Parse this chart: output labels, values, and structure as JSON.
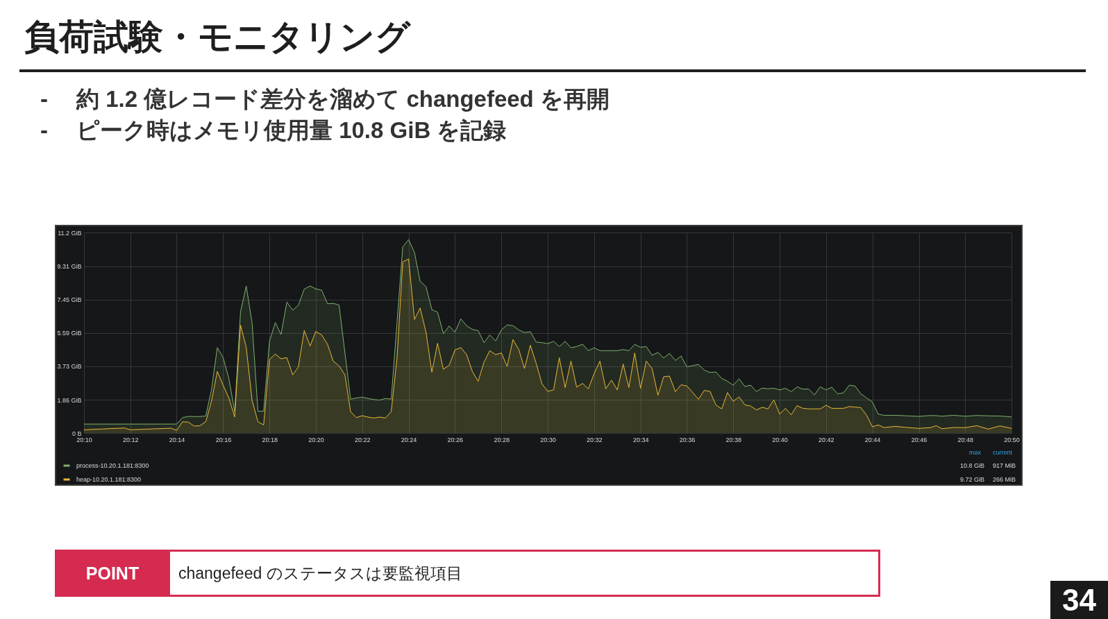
{
  "chart_data": {
    "type": "area",
    "title": "負荷試験・モニタリング",
    "subtitle": "-\t約 1.2 億レコード差分を溜めて changefeed を再開\n-\tピーク時はメモリ使用量 10.8 GiB を記録",
    "x": [
      20.1667,
      20.1958,
      20.2,
      20.2292,
      20.2333,
      20.2375,
      20.2417,
      20.2458,
      20.25,
      20.2542,
      20.2583,
      20.2625,
      20.2667,
      20.2708,
      20.275,
      20.2792,
      20.2833,
      20.2875,
      20.2917,
      20.2958,
      20.3,
      20.3042,
      20.3083,
      20.3125,
      20.3167,
      20.3208,
      20.325,
      20.3292,
      20.3333,
      20.3375,
      20.3417,
      20.3458,
      20.35,
      20.3542,
      20.3583,
      20.3625,
      20.3667,
      20.3708,
      20.375,
      20.3792,
      20.3833,
      20.3875,
      20.3917,
      20.3958,
      20.4,
      20.4042,
      20.4083,
      20.4125,
      20.4167,
      20.4208,
      20.425,
      20.4292,
      20.4333,
      20.4375,
      20.4417,
      20.4458,
      20.45,
      20.4542,
      20.4583,
      20.4625,
      20.4667,
      20.4708,
      20.475,
      20.4792,
      20.4833,
      20.4875,
      20.4917,
      20.4958,
      20.5,
      20.5042,
      20.5083,
      20.5125,
      20.5167,
      20.5208,
      20.525,
      20.5292,
      20.5333,
      20.5375,
      20.5417,
      20.5458,
      20.55,
      20.5542,
      20.5583,
      20.5625,
      20.5667,
      20.5708,
      20.575,
      20.5792,
      20.5833,
      20.5875,
      20.5917,
      20.5958,
      20.6,
      20.6042,
      20.6083,
      20.6125,
      20.6167,
      20.6208,
      20.625,
      20.6292,
      20.6333,
      20.6375,
      20.6417,
      20.6458,
      20.65,
      20.6542,
      20.6583,
      20.6625,
      20.6667,
      20.6708,
      20.675,
      20.6792,
      20.6833,
      20.6875,
      20.6917,
      20.6958,
      20.7,
      20.7042,
      20.7083,
      20.7125,
      20.7167,
      20.7208,
      20.725,
      20.7292,
      20.7333,
      20.7375,
      20.7417,
      20.75,
      20.7583,
      20.7667,
      20.775,
      20.7792,
      20.7833,
      20.7917,
      20.8,
      20.8083,
      20.8167,
      20.825,
      20.8333
    ],
    "series": [
      {
        "name": "process-10.20.1.181:8300",
        "color": "#7eb26d",
        "values": [
          0.5,
          0.5,
          0.5,
          0.5,
          0.5,
          0.86,
          0.93,
          0.92,
          0.92,
          0.95,
          2.41,
          4.77,
          4.21,
          3.05,
          1.19,
          6.77,
          8.21,
          6.15,
          1.22,
          1.22,
          5.12,
          6.17,
          5.5,
          7.31,
          6.86,
          7.14,
          8.04,
          8.21,
          8.05,
          7.98,
          7.22,
          7.24,
          7.15,
          4.5,
          1.89,
          1.96,
          2.0,
          1.93,
          1.87,
          1.84,
          1.93,
          1.89,
          6.2,
          10.4,
          10.8,
          10.08,
          8.47,
          8.18,
          6.89,
          6.75,
          5.55,
          5.98,
          5.63,
          6.38,
          5.99,
          5.79,
          5.72,
          5.04,
          5.48,
          5.14,
          5.76,
          6.04,
          5.99,
          5.76,
          5.61,
          5.66,
          5.08,
          5.05,
          4.99,
          5.12,
          4.83,
          5.12,
          4.76,
          4.83,
          4.96,
          4.6,
          4.76,
          4.6,
          4.6,
          4.6,
          4.6,
          4.66,
          4.6,
          4.95,
          4.79,
          4.83,
          4.34,
          4.5,
          4.19,
          4.45,
          4.05,
          4.3,
          3.7,
          3.76,
          3.83,
          3.51,
          3.38,
          3.41,
          3.05,
          2.89,
          2.67,
          3.03,
          2.6,
          2.67,
          2.32,
          2.51,
          2.47,
          2.5,
          2.41,
          2.5,
          2.31,
          2.58,
          2.45,
          2.46,
          2.13,
          2.58,
          2.41,
          2.56,
          2.19,
          2.24,
          2.67,
          2.63,
          2.19,
          1.96,
          1.73,
          1.06,
          0.99,
          0.99,
          0.96,
          0.93,
          0.98,
          0.97,
          0.94,
          0.99,
          0.94,
          0.98,
          0.96,
          0.95,
          0.9
        ]
      },
      {
        "name": "heap-10.20.1.181:8300",
        "color": "#eab839",
        "values": [
          0.18,
          0.28,
          0.18,
          0.27,
          0.15,
          0.63,
          0.61,
          0.39,
          0.41,
          0.63,
          1.77,
          3.44,
          2.67,
          1.96,
          0.9,
          6.02,
          4.79,
          1.83,
          0.63,
          0.45,
          4.11,
          4.41,
          4.15,
          4.21,
          3.25,
          3.7,
          5.73,
          4.86,
          5.67,
          5.48,
          4.96,
          4.02,
          3.75,
          3.25,
          1.19,
          0.86,
          0.97,
          0.89,
          0.84,
          0.89,
          0.84,
          1.19,
          4.21,
          9.56,
          9.72,
          6.34,
          6.98,
          5.63,
          3.4,
          5.01,
          3.56,
          3.79,
          4.64,
          4.77,
          4.38,
          3.44,
          2.89,
          3.96,
          4.6,
          4.38,
          4.47,
          3.72,
          5.22,
          4.66,
          3.6,
          4.9,
          3.89,
          2.75,
          2.33,
          2.41,
          4.21,
          2.54,
          4.02,
          2.56,
          2.77,
          2.47,
          3.31,
          4.02,
          2.47,
          2.95,
          2.41,
          3.85,
          2.54,
          4.47,
          2.5,
          4.02,
          3.6,
          2.11,
          3.14,
          3.18,
          2.31,
          2.69,
          2.63,
          2.26,
          1.89,
          2.38,
          2.32,
          1.57,
          1.35,
          2.26,
          1.77,
          2.02,
          1.57,
          1.51,
          1.29,
          1.44,
          1.35,
          1.85,
          1.06,
          1.38,
          1.02,
          1.53,
          1.38,
          1.35,
          1.35,
          1.35,
          1.55,
          1.38,
          1.38,
          1.38,
          1.48,
          1.45,
          1.42,
          0.99,
          0.35,
          0.45,
          0.31,
          0.37,
          0.31,
          0.26,
          0.3,
          0.41,
          0.24,
          0.31,
          0.3,
          0.41,
          0.22,
          0.4,
          0.26
        ]
      }
    ],
    "xlim": [
      20.1667,
      20.8333
    ],
    "xticks": [
      {
        "value": 20.1667,
        "label": "20:10"
      },
      {
        "value": 20.2,
        "label": "20:12"
      },
      {
        "value": 20.2333,
        "label": "20:14"
      },
      {
        "value": 20.2667,
        "label": "20:16"
      },
      {
        "value": 20.3,
        "label": "20:18"
      },
      {
        "value": 20.3333,
        "label": "20:20"
      },
      {
        "value": 20.3667,
        "label": "20:22"
      },
      {
        "value": 20.4,
        "label": "20:24"
      },
      {
        "value": 20.4333,
        "label": "20:26"
      },
      {
        "value": 20.4667,
        "label": "20:28"
      },
      {
        "value": 20.5,
        "label": "20:30"
      },
      {
        "value": 20.5333,
        "label": "20:32"
      },
      {
        "value": 20.5667,
        "label": "20:34"
      },
      {
        "value": 20.6,
        "label": "20:36"
      },
      {
        "value": 20.6333,
        "label": "20:38"
      },
      {
        "value": 20.6667,
        "label": "20:40"
      },
      {
        "value": 20.7,
        "label": "20:42"
      },
      {
        "value": 20.7333,
        "label": "20:44"
      },
      {
        "value": 20.7667,
        "label": "20:46"
      },
      {
        "value": 20.8,
        "label": "20:48"
      },
      {
        "value": 20.8333,
        "label": "20:50"
      }
    ],
    "ylim": [
      0,
      11.2
    ],
    "yticks": [
      {
        "value": 0,
        "label": "0 B"
      },
      {
        "value": 1.86,
        "label": "1.86 GiB"
      },
      {
        "value": 3.73,
        "label": "3.73 GiB"
      },
      {
        "value": 5.59,
        "label": "5.59 GiB"
      },
      {
        "value": 7.45,
        "label": "7.45 GiB"
      },
      {
        "value": 9.31,
        "label": "9.31 GiB"
      },
      {
        "value": 11.2,
        "label": "11.2 GiB"
      }
    ],
    "grid": true,
    "legend": "bottom left",
    "annotations": [
      "max",
      "current",
      "10.8 GiB",
      "917 MiB",
      "9.72 GiB",
      "266 MiB",
      "POINT",
      "changefeed のステータスは要監視項目",
      "34"
    ]
  }
}
